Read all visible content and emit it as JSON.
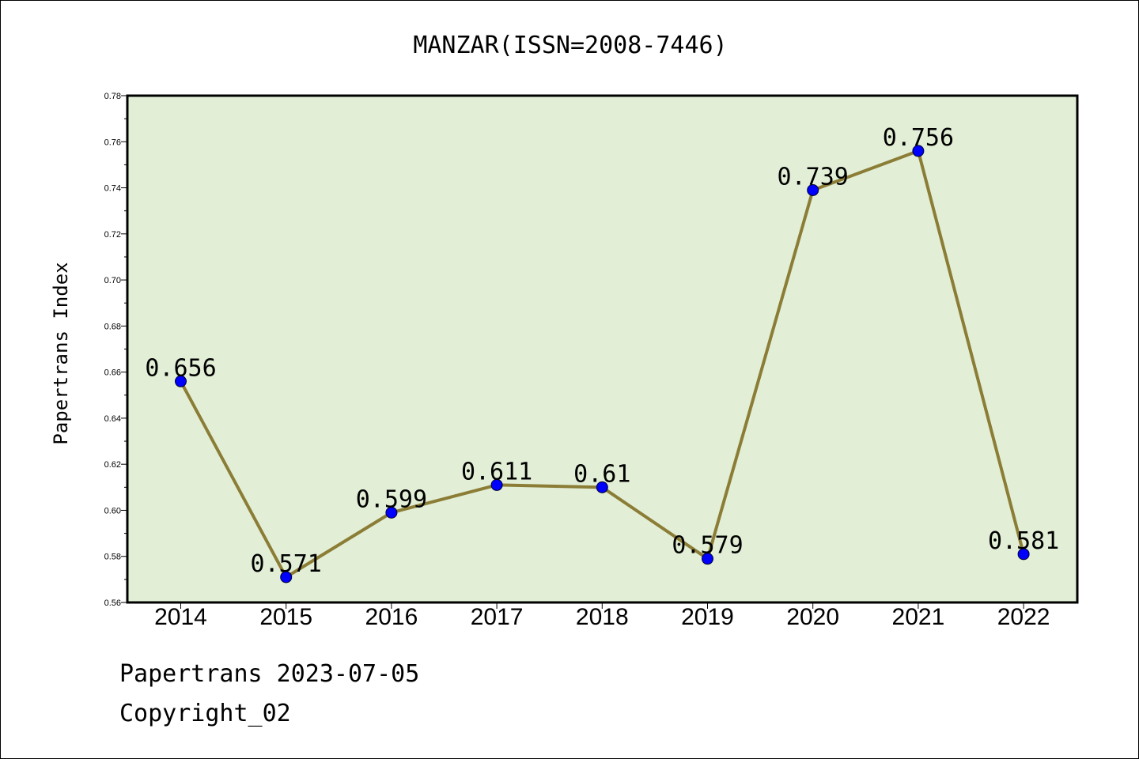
{
  "footer": {
    "line1": "Papertrans 2023-07-05",
    "line2": "Copyright_02"
  },
  "colors": {
    "plot_background": "#e2efd6",
    "line": "#8b7d36",
    "marker": "#0000ff",
    "axis": "#000000"
  },
  "chart_data": {
    "type": "line",
    "title": "MANZAR(ISSN=2008-7446)",
    "xlabel": "",
    "ylabel": "Papertrans Index",
    "categories": [
      "2014",
      "2015",
      "2016",
      "2017",
      "2018",
      "2019",
      "2020",
      "2021",
      "2022"
    ],
    "series": [
      {
        "values": [
          0.656,
          0.571,
          0.599,
          0.611,
          0.61,
          0.579,
          0.739,
          0.756,
          0.581
        ],
        "labels": [
          "0.656",
          "0.571",
          "0.599",
          "0.611",
          "0.61",
          "0.579",
          "0.739",
          "0.756",
          "0.581"
        ]
      }
    ],
    "ylim": [
      0.56,
      0.78
    ],
    "yticks": [
      "0.56",
      "0.58",
      "0.60",
      "0.62",
      "0.64",
      "0.66",
      "0.68",
      "0.70",
      "0.72",
      "0.74",
      "0.76",
      "0.78"
    ],
    "grid": false,
    "legend": "none"
  }
}
